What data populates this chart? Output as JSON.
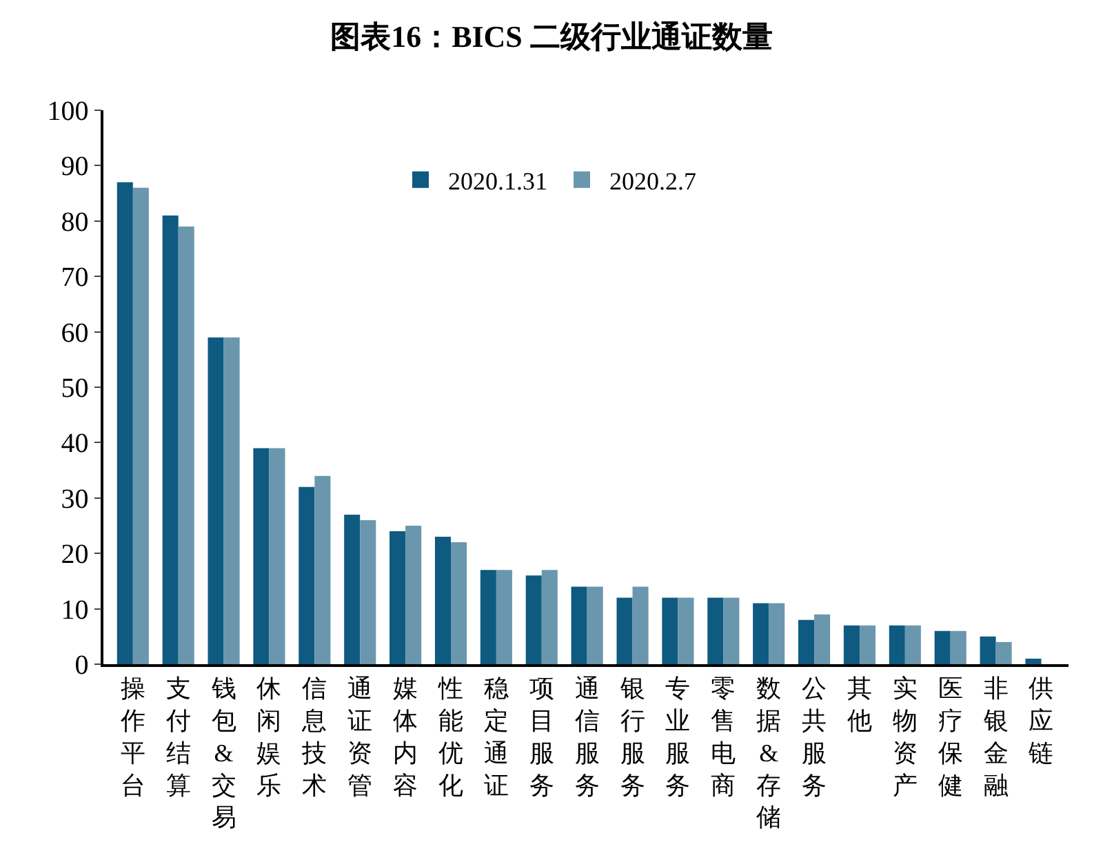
{
  "chart_data": {
    "type": "bar",
    "title": "图表16：BICS 二级行业通证数量",
    "categories": [
      "操作平台",
      "支付结算",
      "钱包&交易",
      "休闲娱乐",
      "信息技术",
      "通证资管",
      "媒体内容",
      "性能优化",
      "稳定通证",
      "项目服务",
      "通信服务",
      "银行服务",
      "专业服务",
      "零售电商",
      "数据&存储",
      "公共服务",
      "其他",
      "实物资产",
      "医疗保健",
      "非银金融",
      "供应链"
    ],
    "series": [
      {
        "name": "2020.1.31",
        "color": "#0e5a80",
        "values": [
          87,
          81,
          59,
          39,
          32,
          27,
          24,
          23,
          17,
          16,
          14,
          12,
          12,
          12,
          11,
          8,
          7,
          7,
          6,
          5,
          1
        ]
      },
      {
        "name": "2020.2.7",
        "color": "#6a97ad",
        "values": [
          86,
          79,
          59,
          39,
          34,
          26,
          25,
          22,
          17,
          17,
          14,
          14,
          12,
          12,
          11,
          9,
          7,
          7,
          6,
          4,
          0
        ]
      }
    ],
    "ylim": [
      0,
      100
    ],
    "yticks": [
      0,
      10,
      20,
      30,
      40,
      50,
      60,
      70,
      80,
      90,
      100
    ],
    "legend": "top right"
  }
}
